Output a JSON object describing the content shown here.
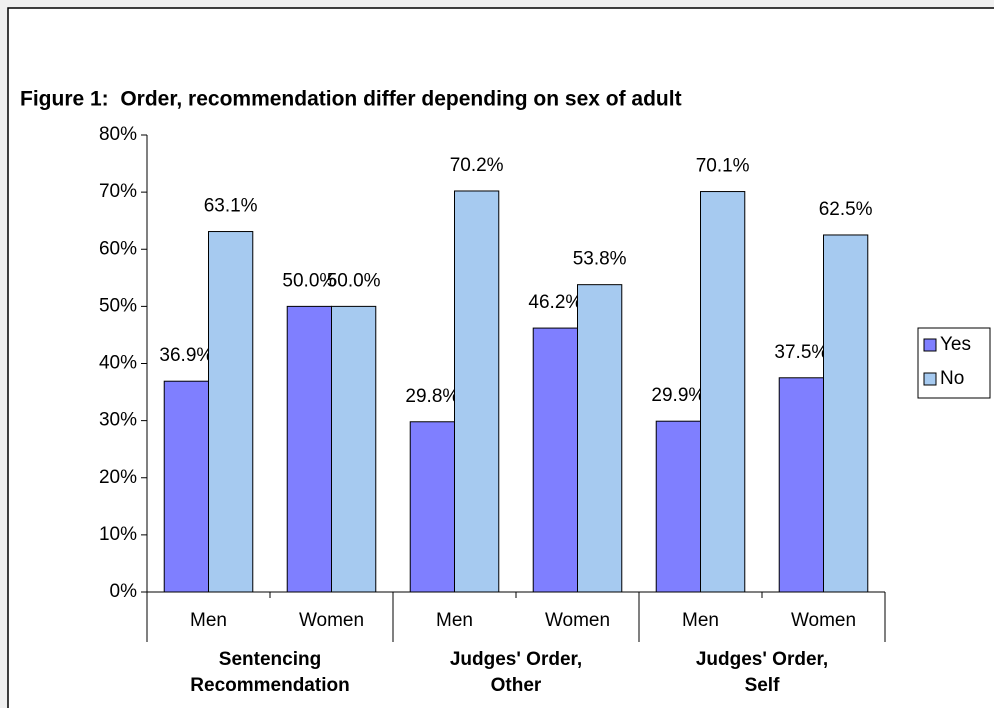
{
  "chart_data": {
    "type": "bar",
    "title": "Figure 1:  Order, recommendation differ depending on sex of adult",
    "categories": [
      "Men",
      "Women",
      "Men",
      "Women",
      "Men",
      "Women"
    ],
    "groups": [
      {
        "label_lines": [
          "Sentencing",
          "Recommendation"
        ]
      },
      {
        "label_lines": [
          "Judges' Order,",
          "Other"
        ]
      },
      {
        "label_lines": [
          "Judges' Order,",
          "Self"
        ]
      }
    ],
    "series": [
      {
        "name": "Yes",
        "color": "#7f7fff",
        "values": [
          36.9,
          50.0,
          29.8,
          46.2,
          29.9,
          37.5
        ],
        "value_labels": [
          "36.9%",
          "50.0%",
          "29.8%",
          "46.2%",
          "29.9%",
          "37.5%"
        ]
      },
      {
        "name": "No",
        "color": "#a6caf0",
        "values": [
          63.1,
          50.0,
          70.2,
          53.8,
          70.1,
          62.5
        ],
        "value_labels": [
          "63.1%",
          "50.0%",
          "70.2%",
          "53.8%",
          "70.1%",
          "62.5%"
        ]
      }
    ],
    "ylim": [
      0,
      80
    ],
    "yticks": [
      {
        "value": 0,
        "label": "0%"
      },
      {
        "value": 10,
        "label": "10%"
      },
      {
        "value": 20,
        "label": "20%"
      },
      {
        "value": 30,
        "label": "30%"
      },
      {
        "value": 40,
        "label": "40%"
      },
      {
        "value": 50,
        "label": "50%"
      },
      {
        "value": 60,
        "label": "60%"
      },
      {
        "value": 70,
        "label": "70%"
      },
      {
        "value": 80,
        "label": "80%"
      }
    ],
    "grid": false,
    "legend": "right"
  }
}
